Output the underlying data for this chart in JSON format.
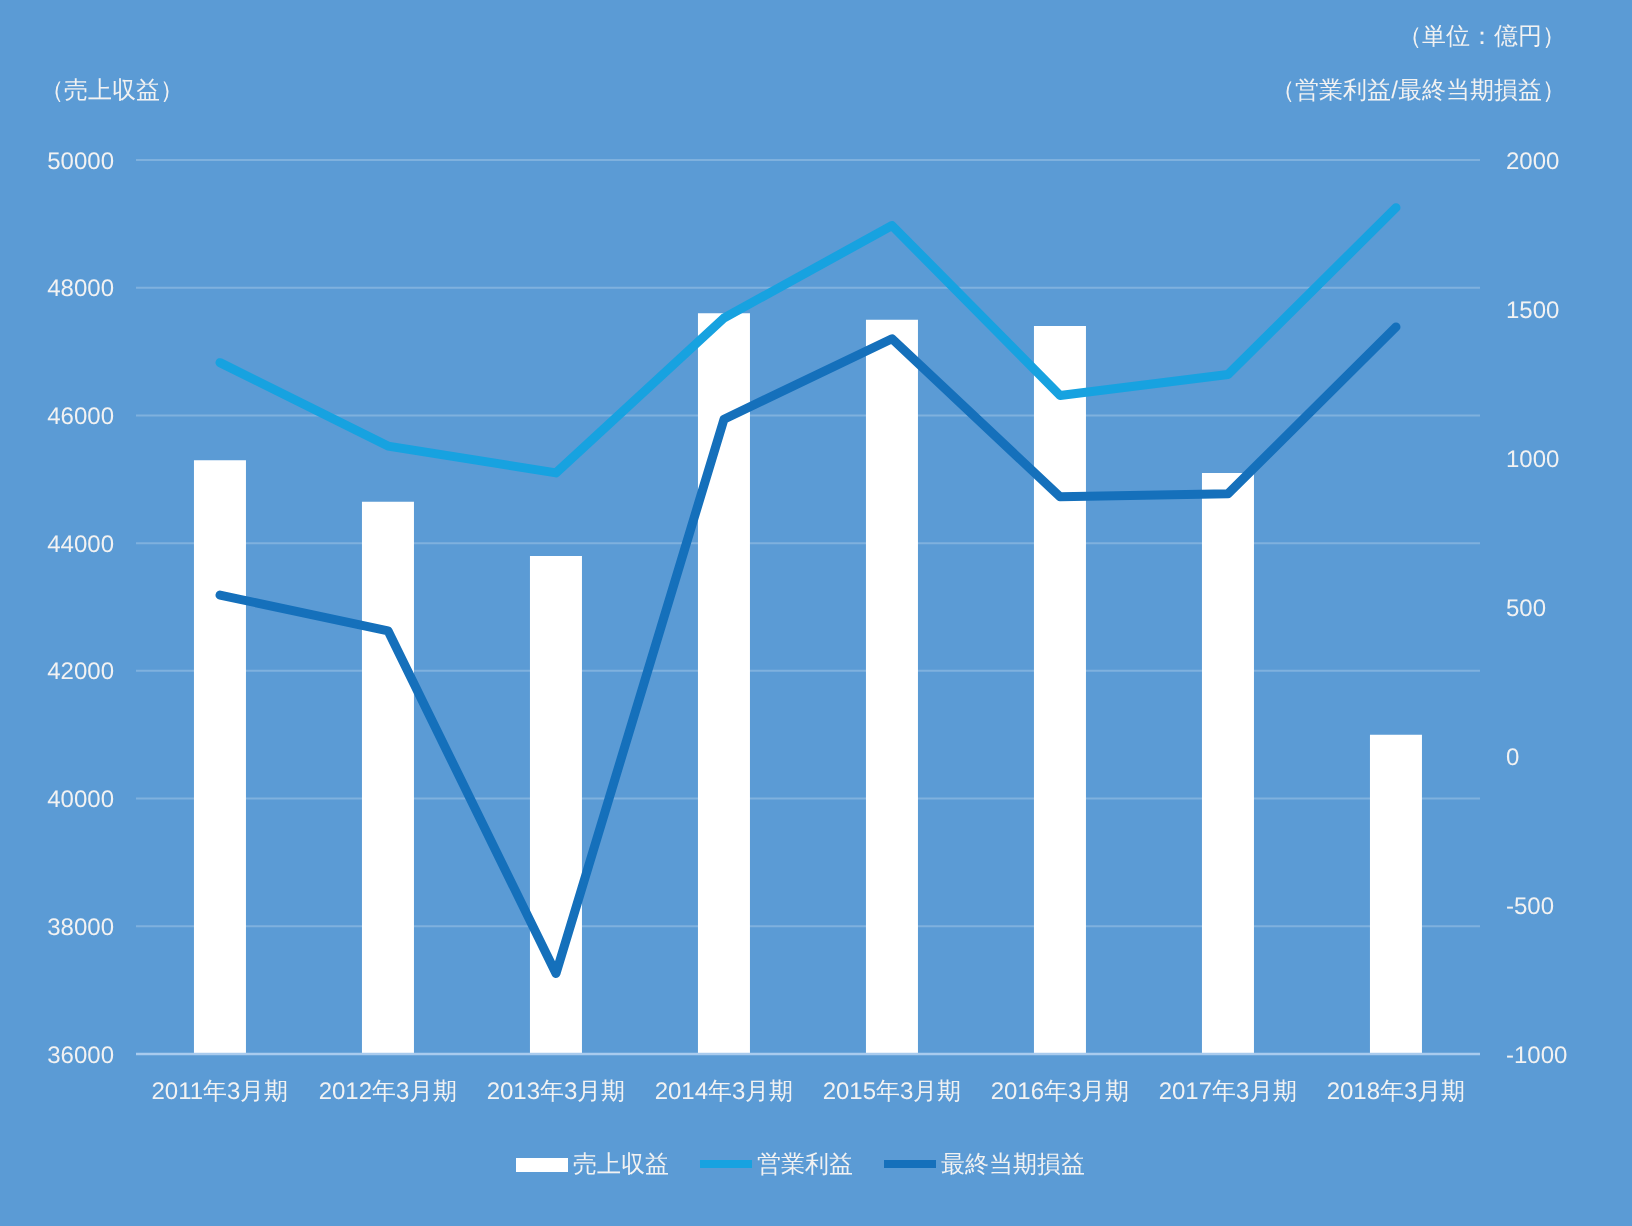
{
  "chart_data": {
    "type": "bar",
    "categories": [
      "2011年3月期",
      "2012年3月期",
      "2013年3月期",
      "2014年3月期",
      "2015年3月期",
      "2016年3月期",
      "2017年3月期",
      "2018年3月期"
    ],
    "series": [
      {
        "name": "売上収益",
        "color": "#ffffff",
        "values": [
          45300,
          44650,
          43800,
          47600,
          47500,
          47400,
          45100,
          41000
        ]
      },
      {
        "name": "営業利益",
        "type": "line",
        "axis": "y2",
        "color": "#17a2e0",
        "values": [
          1320,
          1040,
          950,
          1470,
          1780,
          1210,
          1280,
          1840
        ]
      },
      {
        "name": "最終当期損益",
        "type": "line",
        "axis": "y2",
        "color": "#1570bb",
        "values": [
          540,
          420,
          -730,
          1130,
          1400,
          870,
          880,
          1440
        ]
      }
    ],
    "ylabel": "（売上収益）",
    "y2label": "（営業利益/最終当期損益）",
    "annotations": [
      "（単位：億円）"
    ],
    "ylim": [
      36000,
      50000
    ],
    "yticks": [
      36000,
      38000,
      40000,
      42000,
      44000,
      46000,
      48000,
      50000
    ],
    "y2lim": [
      -1000,
      2000
    ],
    "y2ticks": [
      -1000,
      -500,
      0,
      500,
      1000,
      1500,
      2000
    ],
    "grid": "y",
    "legend": "bottom",
    "marker": "none",
    "line_style": "solid"
  }
}
